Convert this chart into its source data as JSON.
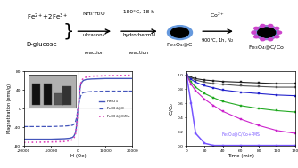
{
  "mag_xlabel": "H (Oe)",
  "mag_ylabel": "Magnetization (emu/g)",
  "mag_xlim": [
    -20000,
    20000
  ],
  "mag_ylim": [
    -80,
    80
  ],
  "mag_yticks": [
    -80,
    -40,
    0,
    40,
    80
  ],
  "mag_xticks": [
    -20000,
    -10000,
    0,
    10000,
    20000
  ],
  "mag_xtick_labels": [
    "-20000",
    "-10000",
    "0",
    "10000",
    "20000"
  ],
  "fe3o4_H": [
    -20000,
    -10000,
    -5000,
    -3000,
    -2000,
    -1500,
    -1000,
    -700,
    -400,
    -200,
    -100,
    0,
    100,
    200,
    400,
    700,
    1000,
    1500,
    2000,
    3000,
    5000,
    10000,
    20000
  ],
  "fe3o4_M": [
    -65,
    -65,
    -64,
    -63,
    -61,
    -58,
    -52,
    -42,
    -25,
    -10,
    -3,
    0,
    3,
    10,
    25,
    42,
    52,
    58,
    61,
    63,
    64,
    65,
    65
  ],
  "fe3o4c_H": [
    -20000,
    -10000,
    -5000,
    -3000,
    -2000,
    -1500,
    -1000,
    -700,
    -400,
    -200,
    -100,
    0,
    100,
    200,
    400,
    700,
    1000,
    1500,
    2000,
    3000,
    5000,
    10000,
    20000
  ],
  "fe3o4c_M": [
    -38,
    -38,
    -37,
    -36,
    -35,
    -33,
    -28,
    -22,
    -13,
    -5,
    -2,
    0,
    2,
    5,
    13,
    22,
    28,
    33,
    35,
    36,
    37,
    38,
    38
  ],
  "fe3o4cco_H": [
    -20000,
    -10000,
    -5000,
    -3000,
    -2000,
    -1500,
    -1000,
    -700,
    -400,
    -200,
    -100,
    0,
    100,
    200,
    400,
    700,
    1000,
    1500,
    2000,
    3000,
    5000,
    10000,
    20000
  ],
  "fe3o4cco_M": [
    -72,
    -71,
    -70,
    -68,
    -66,
    -62,
    -55,
    -44,
    -27,
    -11,
    -4,
    0,
    4,
    11,
    27,
    44,
    55,
    62,
    66,
    68,
    70,
    71,
    72
  ],
  "legend_fe3o4": "Fe$_3$O$_4$",
  "legend_fe3o4c": "Fe$_3$O$_4$@C",
  "legend_fe3o4cco": "Fe$_3$O$_4$@C/Co",
  "fe3o4_color": "#4455bb",
  "fe3o4c_color": "#4455bb",
  "fe3o4cco_color": "#dd44bb",
  "cc0_xlabel": "Time (min)",
  "cc0_ylabel": "C/C$_0$",
  "cc0_xlim": [
    0,
    120
  ],
  "cc0_ylim": [
    0,
    1.05
  ],
  "cc0_yticks": [
    0.0,
    0.2,
    0.4,
    0.6,
    0.8,
    1.0
  ],
  "cc0_xticks": [
    0,
    20,
    40,
    60,
    80,
    100,
    120
  ],
  "time_pts": [
    0,
    5,
    10,
    20,
    30,
    40,
    60,
    80,
    100,
    120
  ],
  "series_pms_cc0": [
    1.0,
    0.6,
    0.18,
    0.04,
    0.01,
    0.01,
    0.01,
    0.01,
    0.01,
    0.01
  ],
  "series_pms_color": "#7755ff",
  "series_pms_label": "Fe$_3$O$_4$@C/Co+PMS",
  "series_a_cc0": [
    1.0,
    0.97,
    0.95,
    0.93,
    0.92,
    0.91,
    0.9,
    0.89,
    0.88,
    0.88
  ],
  "series_a_color": "#222222",
  "series_b_cc0": [
    1.0,
    0.96,
    0.93,
    0.9,
    0.88,
    0.87,
    0.85,
    0.84,
    0.83,
    0.83
  ],
  "series_b_color": "#555555",
  "series_c_cc0": [
    1.0,
    0.94,
    0.9,
    0.85,
    0.82,
    0.79,
    0.76,
    0.74,
    0.72,
    0.71
  ],
  "series_c_color": "#2222cc",
  "series_d_cc0": [
    1.0,
    0.9,
    0.83,
    0.74,
    0.68,
    0.63,
    0.57,
    0.53,
    0.5,
    0.48
  ],
  "series_d_color": "#22aa22",
  "series_e_cc0": [
    1.0,
    0.87,
    0.78,
    0.66,
    0.57,
    0.49,
    0.38,
    0.29,
    0.22,
    0.18
  ],
  "series_e_color": "#cc22cc",
  "bg_color": "#ffffff",
  "circle1_outer_color": "#6699dd",
  "circle1_inner_color": "#000000",
  "circle2_outer_color": "#9977cc",
  "circle2_ring_color": "#6699dd",
  "circle2_inner_color": "#000000",
  "co_dot_color": "#cc44cc",
  "top_left_text1": "Fe$^{2+}$+2Fe$^{3+}$",
  "top_left_text2": "D-glucose",
  "arrow1_top": "NH$_3$$\\cdot$H$_2$O",
  "arrow1_mid": "ultrasonic",
  "arrow1_bot": "reaction",
  "arrow2_top": "180°C, 18 h",
  "arrow2_mid": "hydrothermal",
  "arrow2_bot": "reaction",
  "arrow3_top": "Co$^{2+}$",
  "arrow3_bot": "900°C, 1h, N$_2$",
  "label_c": "Fe$_3$O$_4$@C",
  "label_cco": "Fe$_3$O$_4$@C/Co"
}
